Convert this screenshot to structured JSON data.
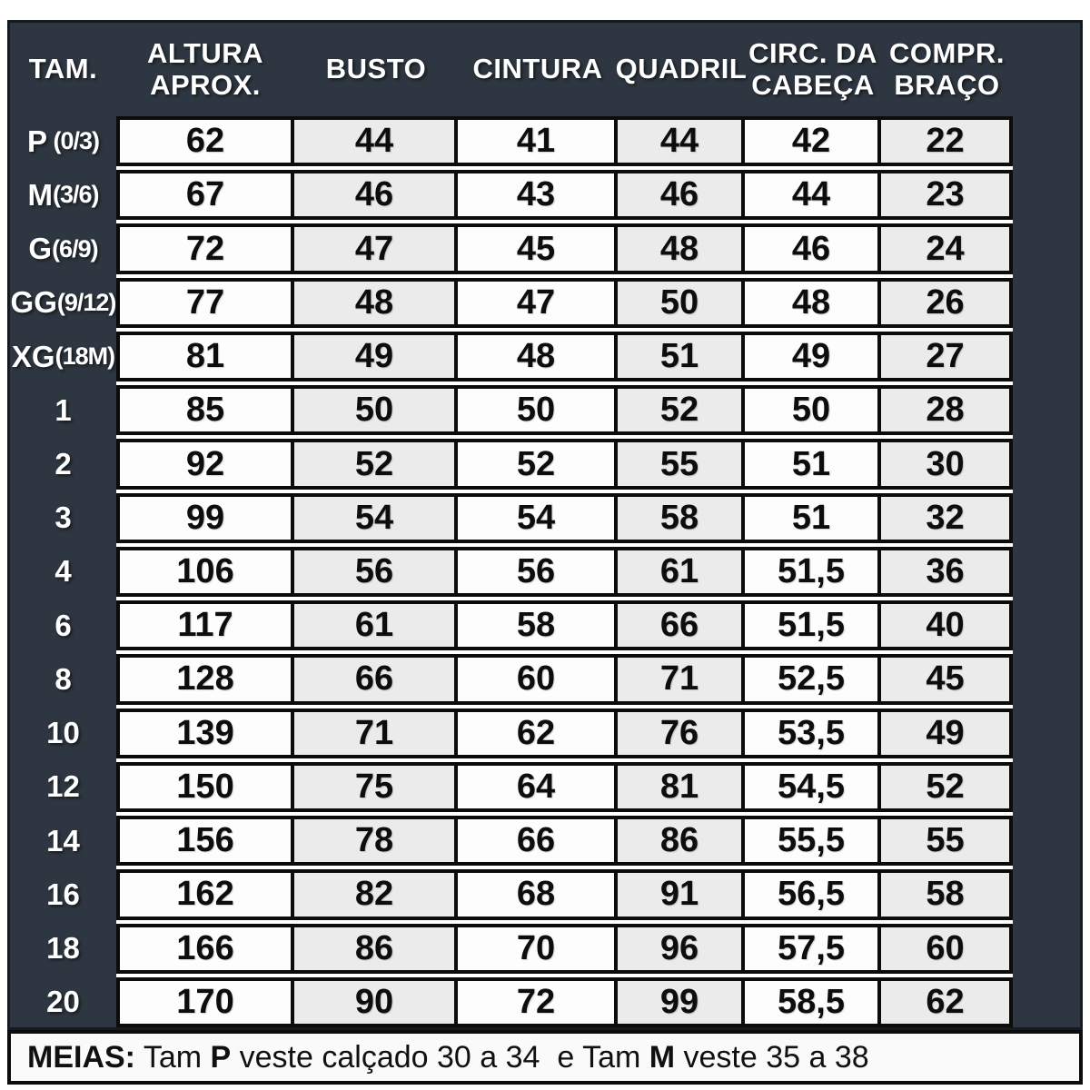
{
  "chart_data": {
    "type": "table",
    "title": "Tabela de medidas (size chart)",
    "columns": [
      "TAM.",
      "ALTURA APROX.",
      "BUSTO",
      "CINTURA",
      "QUADRIL",
      "CIRC. DA CABEÇA",
      "COMPR. BRAÇO"
    ],
    "rows": [
      [
        "P (0/3)",
        62,
        44,
        41,
        44,
        42,
        22
      ],
      [
        "M(3/6)",
        67,
        46,
        43,
        46,
        44,
        23
      ],
      [
        "G(6/9)",
        72,
        47,
        45,
        48,
        46,
        24
      ],
      [
        "GG(9/12)",
        77,
        48,
        47,
        50,
        48,
        26
      ],
      [
        "XG(18M)",
        81,
        49,
        48,
        51,
        49,
        27
      ],
      [
        "1",
        85,
        50,
        50,
        52,
        50,
        28
      ],
      [
        "2",
        92,
        52,
        52,
        55,
        51,
        30
      ],
      [
        "3",
        99,
        54,
        54,
        58,
        51,
        32
      ],
      [
        "4",
        106,
        56,
        56,
        61,
        51.5,
        36
      ],
      [
        "6",
        117,
        61,
        58,
        66,
        51.5,
        40
      ],
      [
        "8",
        128,
        66,
        60,
        71,
        52.5,
        45
      ],
      [
        "10",
        139,
        71,
        62,
        76,
        53.5,
        49
      ],
      [
        "12",
        150,
        75,
        64,
        81,
        54.5,
        52
      ],
      [
        "14",
        156,
        78,
        66,
        86,
        55.5,
        55
      ],
      [
        "16",
        162,
        82,
        68,
        91,
        56.5,
        58
      ],
      [
        "18",
        166,
        86,
        70,
        96,
        57.5,
        60
      ],
      [
        "20",
        170,
        90,
        72,
        99,
        58.5,
        62
      ]
    ],
    "footnote": "MEIAS: Tam P veste calçado 30 a 34  e Tam M veste 35 a 38"
  },
  "ui": {
    "headers": [
      "TAM.",
      "ALTURA\nAPROX.",
      "BUSTO",
      "CINTURA",
      "QUADRIL",
      "CIRC. DA\nCABEÇA",
      "COMPR.\nBRAÇO"
    ],
    "rows": [
      {
        "size_main": "P",
        "size_sub": " (0/3)",
        "values": [
          "62",
          "44",
          "41",
          "44",
          "42",
          "22"
        ]
      },
      {
        "size_main": "M",
        "size_sub": "(3/6)",
        "values": [
          "67",
          "46",
          "43",
          "46",
          "44",
          "23"
        ]
      },
      {
        "size_main": "G",
        "size_sub": "(6/9)",
        "values": [
          "72",
          "47",
          "45",
          "48",
          "46",
          "24"
        ]
      },
      {
        "size_main": "GG",
        "size_sub": "(9/12)",
        "values": [
          "77",
          "48",
          "47",
          "50",
          "48",
          "26"
        ]
      },
      {
        "size_main": "XG",
        "size_sub": "(18M)",
        "values": [
          "81",
          "49",
          "48",
          "51",
          "49",
          "27"
        ]
      },
      {
        "size_main": "1",
        "size_sub": "",
        "values": [
          "85",
          "50",
          "50",
          "52",
          "50",
          "28"
        ]
      },
      {
        "size_main": "2",
        "size_sub": "",
        "values": [
          "92",
          "52",
          "52",
          "55",
          "51",
          "30"
        ]
      },
      {
        "size_main": "3",
        "size_sub": "",
        "values": [
          "99",
          "54",
          "54",
          "58",
          "51",
          "32"
        ]
      },
      {
        "size_main": "4",
        "size_sub": "",
        "values": [
          "106",
          "56",
          "56",
          "61",
          "51,5",
          "36"
        ]
      },
      {
        "size_main": "6",
        "size_sub": "",
        "values": [
          "117",
          "61",
          "58",
          "66",
          "51,5",
          "40"
        ]
      },
      {
        "size_main": "8",
        "size_sub": "",
        "values": [
          "128",
          "66",
          "60",
          "71",
          "52,5",
          "45"
        ]
      },
      {
        "size_main": "10",
        "size_sub": "",
        "values": [
          "139",
          "71",
          "62",
          "76",
          "53,5",
          "49"
        ]
      },
      {
        "size_main": "12",
        "size_sub": "",
        "values": [
          "150",
          "75",
          "64",
          "81",
          "54,5",
          "52"
        ]
      },
      {
        "size_main": "14",
        "size_sub": "",
        "values": [
          "156",
          "78",
          "66",
          "86",
          "55,5",
          "55"
        ]
      },
      {
        "size_main": "16",
        "size_sub": "",
        "values": [
          "162",
          "82",
          "68",
          "91",
          "56,5",
          "58"
        ]
      },
      {
        "size_main": "18",
        "size_sub": "",
        "values": [
          "166",
          "86",
          "70",
          "96",
          "57,5",
          "60"
        ]
      },
      {
        "size_main": "20",
        "size_sub": "",
        "values": [
          "170",
          "90",
          "72",
          "99",
          "58,5",
          "62"
        ]
      }
    ],
    "footer_segments": [
      {
        "text": "MEIAS:",
        "bold": true
      },
      {
        "text": " Tam ",
        "bold": false
      },
      {
        "text": "P",
        "bold": true
      },
      {
        "text": " veste calçado 30 a 34  e Tam ",
        "bold": false
      },
      {
        "text": "M",
        "bold": true
      },
      {
        "text": " veste 35 a 38",
        "bold": false
      }
    ]
  },
  "colors": {
    "panel_dark": "#2e3741",
    "panel_border": "#151a21",
    "cell_white": "#fdfdfd",
    "cell_shaded": "#ebebeb",
    "cell_border": "#0c0c0c",
    "header_text": "#ffffff",
    "value_text": "#0d0d0d"
  }
}
